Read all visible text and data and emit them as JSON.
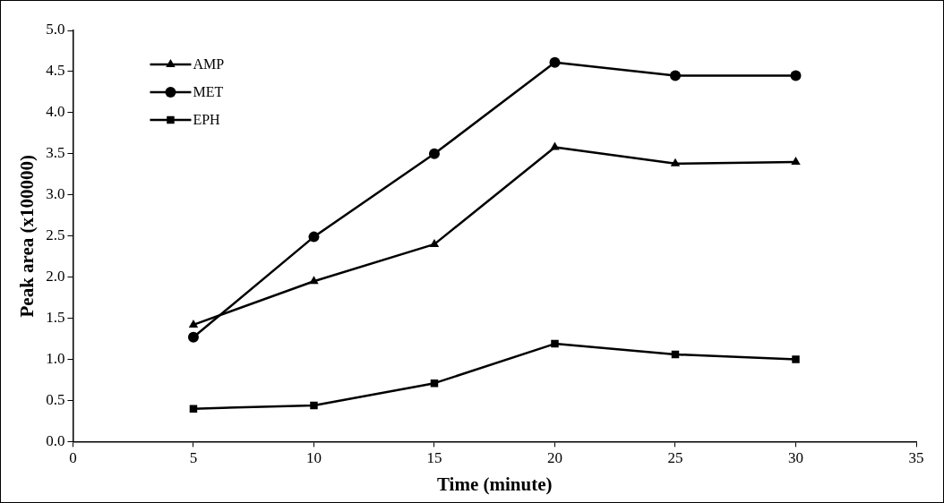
{
  "chart_data": {
    "type": "line",
    "xlabel": "Time (minute)",
    "ylabel": "Peak area (x100000)",
    "x": [
      5,
      10,
      15,
      20,
      25,
      30
    ],
    "series": [
      {
        "name": "AMP",
        "color": "#000000",
        "marker": "triangle",
        "values": [
          1.42,
          1.95,
          2.4,
          3.58,
          3.38,
          3.4
        ]
      },
      {
        "name": "MET",
        "color": "#000000",
        "marker": "circle",
        "values": [
          1.27,
          2.49,
          3.5,
          4.61,
          4.45,
          4.45
        ]
      },
      {
        "name": "EPH",
        "color": "#000000",
        "marker": "square",
        "values": [
          0.4,
          0.44,
          0.71,
          1.19,
          1.06,
          1.0
        ]
      }
    ],
    "xlim": [
      0,
      35
    ],
    "xticks": [
      0,
      5,
      10,
      15,
      20,
      25,
      30,
      35
    ],
    "ylim": [
      0,
      5
    ],
    "yticks": [
      {
        "value": 0,
        "label": "0.0"
      },
      {
        "value": 0.5,
        "label": "0.5"
      },
      {
        "value": 1,
        "label": "1.0"
      },
      {
        "value": 1.5,
        "label": "1.5"
      },
      {
        "value": 2,
        "label": "2.0"
      },
      {
        "value": 2.5,
        "label": "2.5"
      },
      {
        "value": 3,
        "label": "3.0"
      },
      {
        "value": 3.5,
        "label": "3.5"
      },
      {
        "value": 4,
        "label": "4.0"
      },
      {
        "value": 4.5,
        "label": "4.5"
      },
      {
        "value": 5,
        "label": "5.0"
      }
    ],
    "grid": false,
    "legend": "top left",
    "line_style": "solid"
  }
}
